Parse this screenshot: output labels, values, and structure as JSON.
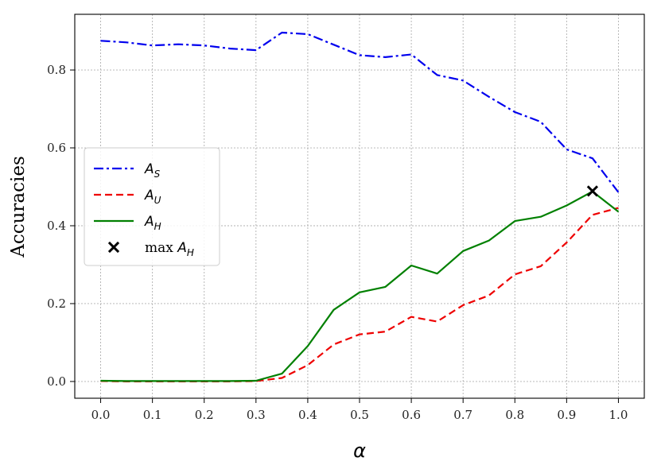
{
  "chart_data": {
    "type": "line",
    "title": "",
    "xlabel": "α",
    "ylabel": "Accuracies",
    "xlim": [
      -0.05,
      1.05
    ],
    "ylim": [
      -0.043,
      0.943
    ],
    "x_ticks": [
      0.0,
      0.1,
      0.2,
      0.3,
      0.4,
      0.5,
      0.6,
      0.7,
      0.8,
      0.9,
      1.0
    ],
    "x_tick_labels": [
      "0.0",
      "0.1",
      "0.2",
      "0.3",
      "0.4",
      "0.5",
      "0.6",
      "0.7",
      "0.8",
      "0.9",
      "1.0"
    ],
    "y_ticks": [
      0.0,
      0.2,
      0.4,
      0.6,
      0.8
    ],
    "y_tick_labels": [
      "0.0",
      "0.2",
      "0.4",
      "0.6",
      "0.8"
    ],
    "grid": true,
    "legend_position": "center-left",
    "x": [
      0.0,
      0.05,
      0.1,
      0.15,
      0.2,
      0.25,
      0.3,
      0.35,
      0.4,
      0.45,
      0.5,
      0.55,
      0.6,
      0.65,
      0.7,
      0.75,
      0.8,
      0.85,
      0.9,
      0.95,
      1.0
    ],
    "series": [
      {
        "key": "S",
        "legend_main": "A",
        "legend_sub": "S",
        "color": "#0000ee",
        "style": "dashdot",
        "values": [
          0.875,
          0.871,
          0.863,
          0.866,
          0.863,
          0.855,
          0.851,
          0.896,
          0.892,
          0.865,
          0.838,
          0.833,
          0.84,
          0.787,
          0.773,
          0.731,
          0.692,
          0.667,
          0.596,
          0.573,
          0.486
        ]
      },
      {
        "key": "U",
        "legend_main": "A",
        "legend_sub": "U",
        "color": "#ee0000",
        "style": "dashed",
        "values": [
          0.001,
          0.0,
          0.0,
          0.0,
          0.0,
          0.0,
          0.001,
          0.009,
          0.042,
          0.095,
          0.121,
          0.128,
          0.166,
          0.154,
          0.196,
          0.221,
          0.275,
          0.296,
          0.357,
          0.428,
          0.446
        ]
      },
      {
        "key": "H",
        "legend_main": "A",
        "legend_sub": "H",
        "color": "#008000",
        "style": "solid",
        "values": [
          0.002,
          0.001,
          0.001,
          0.001,
          0.001,
          0.001,
          0.002,
          0.02,
          0.091,
          0.184,
          0.229,
          0.243,
          0.298,
          0.277,
          0.335,
          0.362,
          0.412,
          0.423,
          0.452,
          0.488,
          0.436
        ]
      }
    ],
    "markers": [
      {
        "legend_prefix": "max",
        "legend_main": "A",
        "legend_sub": "H",
        "x": 0.95,
        "y": 0.489,
        "color": "#000000",
        "symbol": "x"
      }
    ]
  }
}
